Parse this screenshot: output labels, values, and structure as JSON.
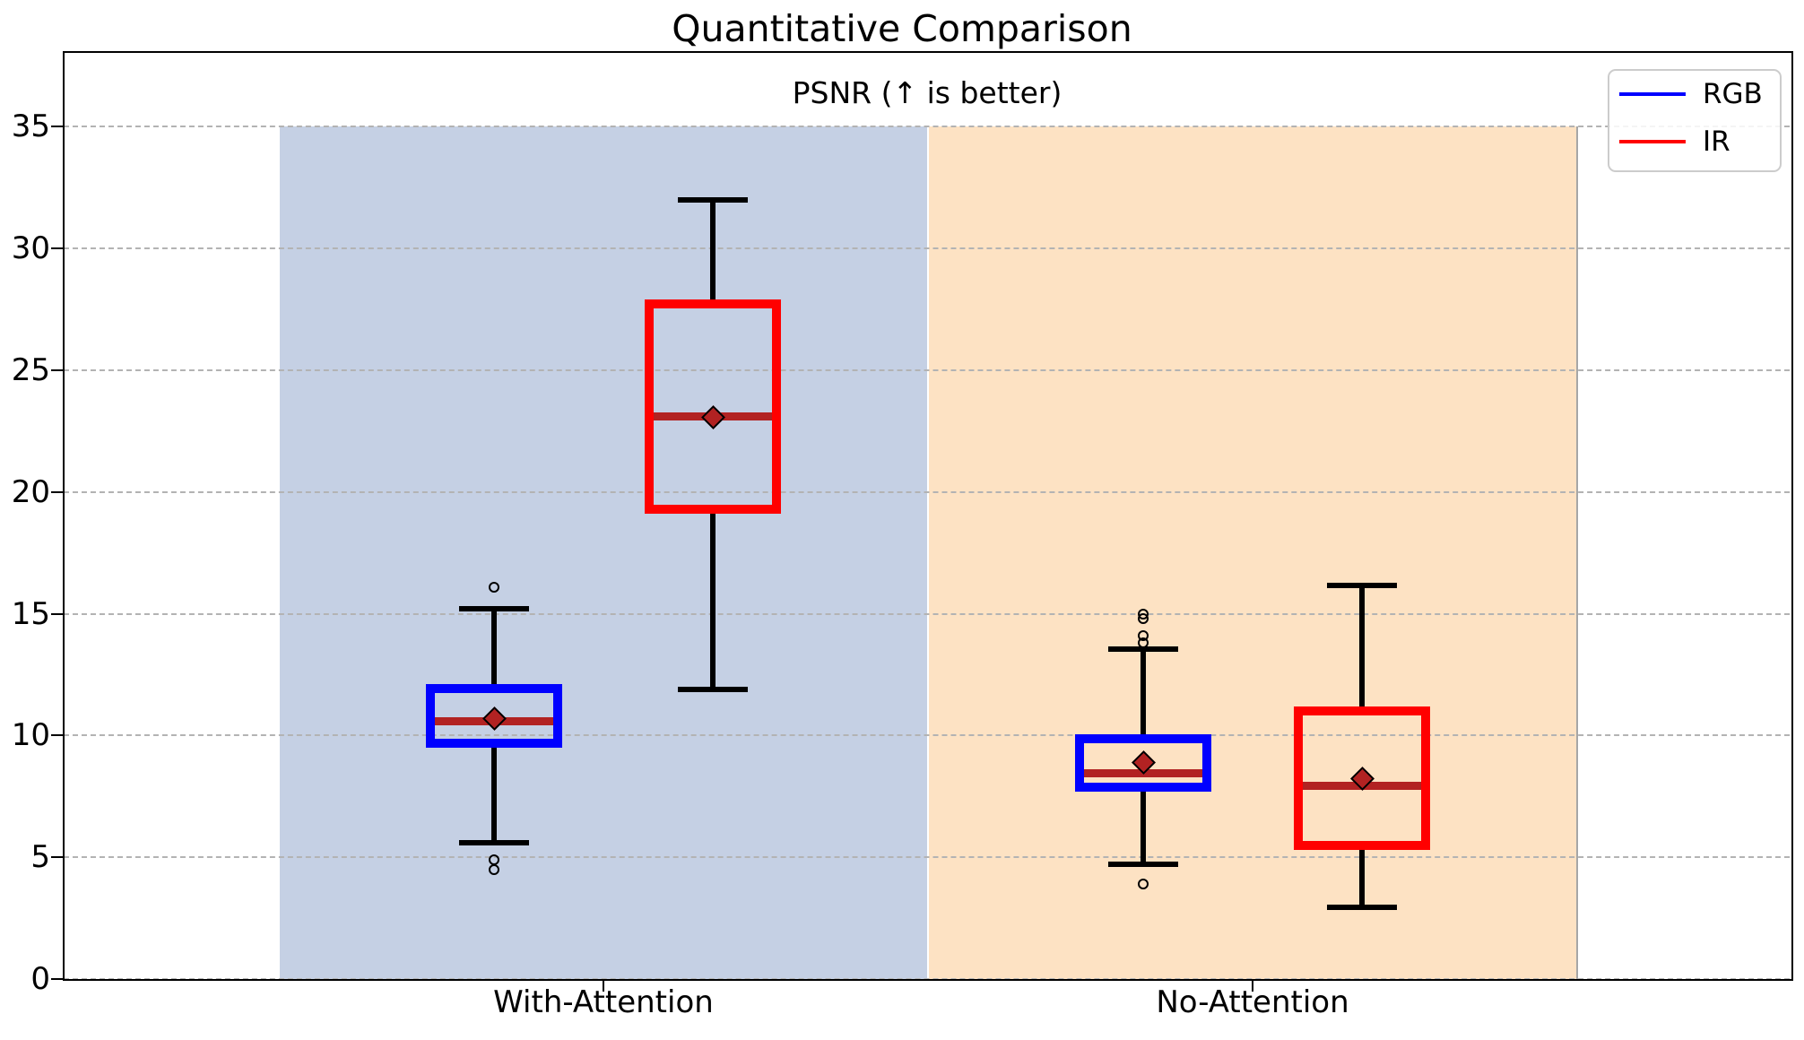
{
  "chart_data": {
    "type": "boxplot",
    "title": "Quantitative Comparison",
    "axis_title": "PSNR (↑ is better)",
    "ylim": [
      0,
      38.11
    ],
    "yticks": [
      0,
      5,
      10,
      15,
      20,
      25,
      30,
      35
    ],
    "grid": "dashed-horizontal",
    "categories": [
      "With-Attention",
      "No-Attention"
    ],
    "groups": [
      {
        "label": "With-Attention",
        "band_color": "#C5D0E4",
        "boxes": [
          {
            "series": "RGB",
            "color": "#0000FF",
            "whislo": 5.6,
            "q1": 9.5,
            "med": 10.6,
            "mean": 10.7,
            "q3": 12.1,
            "whishi": 15.2,
            "fliers": [
              16.1,
              4.9,
              4.5
            ]
          },
          {
            "series": "IR",
            "color": "#FF0000",
            "whislo": 11.9,
            "q1": 19.1,
            "med": 23.1,
            "mean": 23.1,
            "q3": 27.9,
            "whishi": 32.0,
            "fliers": []
          }
        ]
      },
      {
        "label": "No-Attention",
        "band_color": "#FDE2C3",
        "boxes": [
          {
            "series": "RGB",
            "color": "#0000FF",
            "whislo": 4.7,
            "q1": 7.7,
            "med": 8.45,
            "mean": 8.9,
            "q3": 10.05,
            "whishi": 13.55,
            "fliers": [
              15.0,
              14.8,
              14.1,
              13.8,
              3.9
            ]
          },
          {
            "series": "IR",
            "color": "#FF0000",
            "whislo": 2.95,
            "q1": 5.3,
            "med": 7.95,
            "mean": 8.25,
            "q3": 11.2,
            "whishi": 16.15,
            "fliers": []
          }
        ]
      }
    ],
    "median_color": "#B22222",
    "mean_marker": "diamond",
    "mean_color": "#B22222",
    "whisker_color": "#000000",
    "legend": [
      {
        "label": "RGB",
        "color": "#0000FF"
      },
      {
        "label": "IR",
        "color": "#FF0000"
      }
    ],
    "legend_position": "upper right"
  }
}
